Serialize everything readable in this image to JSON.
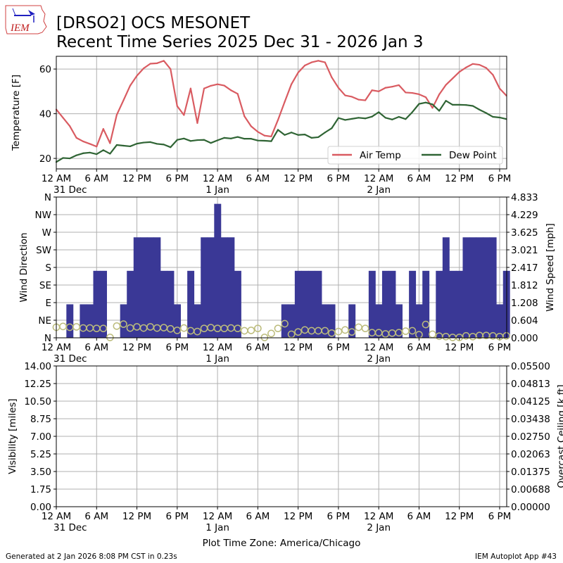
{
  "header": {
    "logo_text": "IEM",
    "title_line1": "[DRSO2] OCS MESONET",
    "title_line2": "Recent Time Series 2025 Dec 31 - 2026 Jan 3"
  },
  "footer": {
    "generated": "Generated at 2 Jan 2026 8:08 PM CST in 0.23s",
    "app": "IEM Autoplot App #43"
  },
  "x_axis": {
    "xlim": [
      "2025-12-31T00:00",
      "2026-01-02T19:03"
    ],
    "tick_step_hours": 6,
    "tick_labels": [
      "12 AM",
      "6 AM",
      "12 PM",
      "6 PM",
      "12 AM",
      "6 AM",
      "12 PM",
      "6 PM",
      "12 AM",
      "6 AM",
      "12 PM",
      "6 PM"
    ],
    "date_labels": [
      {
        "tick": 0,
        "label": "31 Dec"
      },
      {
        "tick": 4,
        "label": "1 Jan"
      },
      {
        "tick": 8,
        "label": "2 Jan"
      }
    ],
    "xlabel": "Plot Time Zone: America/Chicago"
  },
  "x": [
    "2025-12-31T00:00",
    "2025-12-31T01:00",
    "2025-12-31T02:00",
    "2025-12-31T03:00",
    "2025-12-31T04:00",
    "2025-12-31T05:00",
    "2025-12-31T06:00",
    "2025-12-31T07:00",
    "2025-12-31T08:00",
    "2025-12-31T09:00",
    "2025-12-31T10:00",
    "2025-12-31T11:00",
    "2025-12-31T12:00",
    "2025-12-31T13:00",
    "2025-12-31T14:00",
    "2025-12-31T15:00",
    "2025-12-31T16:00",
    "2025-12-31T17:00",
    "2025-12-31T18:00",
    "2025-12-31T19:00",
    "2025-12-31T20:00",
    "2025-12-31T21:00",
    "2025-12-31T22:00",
    "2025-12-31T23:00",
    "2026-01-01T00:00",
    "2026-01-01T01:00",
    "2026-01-01T02:00",
    "2026-01-01T03:00",
    "2026-01-01T04:00",
    "2026-01-01T05:00",
    "2026-01-01T06:00",
    "2026-01-01T07:00",
    "2026-01-01T08:00",
    "2026-01-01T09:00",
    "2026-01-01T10:00",
    "2026-01-01T11:00",
    "2026-01-01T12:00",
    "2026-01-01T13:00",
    "2026-01-01T14:00",
    "2026-01-01T15:00",
    "2026-01-01T16:00",
    "2026-01-01T17:00",
    "2026-01-01T18:00",
    "2026-01-01T19:00",
    "2026-01-01T20:00",
    "2026-01-01T21:00",
    "2026-01-01T22:00",
    "2026-01-01T23:00",
    "2026-01-02T00:00",
    "2026-01-02T01:00",
    "2026-01-02T02:00",
    "2026-01-02T03:00",
    "2026-01-02T04:00",
    "2026-01-02T05:00",
    "2026-01-02T06:00",
    "2026-01-02T07:00",
    "2026-01-02T08:00",
    "2026-01-02T09:00",
    "2026-01-02T10:00",
    "2026-01-02T11:00",
    "2026-01-02T12:00",
    "2026-01-02T13:00",
    "2026-01-02T14:00",
    "2026-01-02T15:00",
    "2026-01-02T16:00",
    "2026-01-02T17:00",
    "2026-01-02T18:00",
    "2026-01-02T19:00"
  ],
  "chart_data": [
    {
      "type": "line",
      "ylabel": "Temperature [F]",
      "ylim": [
        15.3,
        65.7
      ],
      "yticks": [
        20,
        40,
        60
      ],
      "grid": true,
      "legend": "lower-right",
      "series": [
        {
          "name": "Air Temp",
          "color": "#d95b61",
          "values": [
            41.9,
            38.2,
            34.5,
            29.2,
            27.6,
            26.5,
            25.3,
            33.2,
            26.8,
            39.5,
            46.0,
            52.6,
            57.0,
            60.3,
            62.4,
            62.6,
            63.7,
            60.0,
            43.4,
            39.4,
            51.3,
            35.8,
            51.3,
            52.5,
            53.2,
            52.6,
            50.5,
            48.9,
            38.9,
            34.4,
            31.9,
            30.2,
            29.8,
            37.2,
            45.3,
            53.2,
            58.4,
            61.6,
            63.0,
            63.7,
            63.0,
            56.3,
            51.6,
            48.2,
            47.6,
            46.3,
            46.0,
            50.5,
            50.0,
            51.6,
            52.1,
            52.8,
            49.5,
            49.3,
            48.7,
            47.4,
            42.6,
            48.6,
            52.9,
            55.8,
            58.7,
            60.7,
            62.3,
            61.9,
            60.5,
            57.4,
            51.3,
            48.1
          ]
        },
        {
          "name": "Dew Point",
          "color": "#2f6434",
          "values": [
            18.4,
            20.2,
            20.0,
            21.4,
            22.3,
            22.6,
            21.9,
            23.7,
            22.1,
            26.0,
            25.7,
            25.4,
            26.6,
            27.1,
            27.3,
            26.5,
            26.2,
            25.0,
            28.3,
            28.9,
            27.8,
            28.2,
            28.3,
            26.9,
            28.1,
            29.2,
            28.9,
            29.6,
            28.8,
            28.8,
            28.0,
            27.9,
            27.7,
            32.8,
            30.5,
            31.6,
            30.5,
            30.7,
            29.2,
            29.5,
            31.6,
            33.5,
            38.1,
            37.2,
            37.7,
            38.2,
            37.9,
            38.7,
            40.7,
            38.2,
            37.4,
            38.6,
            37.6,
            40.7,
            44.4,
            45.0,
            44.2,
            41.3,
            45.8,
            44.0,
            44.0,
            43.9,
            43.5,
            41.8,
            40.3,
            38.6,
            38.3,
            37.6
          ]
        }
      ]
    },
    {
      "type": "bar+scatter",
      "ylabel": "Wind Direction",
      "ylabel_right": "Wind Speed [mph]",
      "ylim": [
        0,
        360
      ],
      "ylim_right": [
        0,
        4.833
      ],
      "yticks": [
        0,
        45,
        90,
        135,
        180,
        225,
        270,
        315,
        360
      ],
      "ytick_labels": [
        "N",
        "NE",
        "E",
        "SE",
        "S",
        "SW",
        "W",
        "NW",
        "N"
      ],
      "yticks_right": [
        0,
        0.604,
        1.208,
        1.812,
        2.417,
        3.021,
        3.625,
        4.229,
        4.833
      ],
      "ytick_labels_right": [
        "0.000",
        "0.604",
        "1.208",
        "1.812",
        "2.417",
        "3.021",
        "3.625",
        "4.229",
        "4.833"
      ],
      "grid": true,
      "speed": {
        "color": "#3a3896",
        "axis": "right",
        "values": [
          null,
          null,
          1.15,
          null,
          1.15,
          1.15,
          2.3,
          2.3,
          null,
          null,
          1.15,
          2.3,
          3.45,
          3.45,
          3.45,
          3.45,
          2.3,
          2.3,
          1.15,
          null,
          2.3,
          1.15,
          3.45,
          3.45,
          4.6,
          3.45,
          3.45,
          2.3,
          null,
          null,
          null,
          null,
          null,
          null,
          1.15,
          1.15,
          2.3,
          2.3,
          2.3,
          2.3,
          1.15,
          1.15,
          null,
          null,
          1.15,
          null,
          null,
          2.3,
          1.15,
          2.3,
          2.3,
          1.15,
          null,
          2.3,
          1.15,
          2.3,
          null,
          2.3,
          3.45,
          2.3,
          2.3,
          3.45,
          3.45,
          3.45,
          3.45,
          3.45,
          1.15,
          2.3
        ]
      },
      "direction": {
        "color": "#bcbc7c",
        "axis": "left",
        "values": [
          27,
          29,
          27,
          28,
          25,
          25,
          24,
          24,
          1,
          30,
          35,
          25,
          28,
          25,
          28,
          25,
          26,
          23,
          19,
          25,
          18,
          16,
          24,
          26,
          24,
          24,
          25,
          24,
          18,
          19,
          24,
          1,
          11,
          24,
          36,
          9,
          15,
          20,
          18,
          18,
          18,
          12,
          16,
          20,
          15,
          27,
          24,
          13,
          13,
          10,
          12,
          13,
          17,
          18,
          8,
          34,
          9,
          4,
          3,
          1,
          1,
          5,
          3,
          6,
          6,
          5,
          3,
          5
        ]
      }
    },
    {
      "type": "line",
      "ylabel": "Visibility [miles]",
      "ylabel_right": "Overcast Ceiling [k ft]",
      "ylabel_right_color": "#008000",
      "ylim": [
        0,
        14
      ],
      "ylim_right": [
        0,
        0.055
      ],
      "yticks": [
        0,
        1.75,
        3.5,
        5.25,
        7,
        8.75,
        10.5,
        12.25,
        14
      ],
      "ytick_labels": [
        "0.00",
        "1.75",
        "3.50",
        "5.25",
        "7.00",
        "8.75",
        "10.50",
        "12.25",
        "14.00"
      ],
      "yticks_right": [
        0,
        0.006875,
        0.01375,
        0.020625,
        0.0275,
        0.034375,
        0.04125,
        0.048125,
        0.055
      ],
      "ytick_labels_right": [
        "0.00000",
        "0.00688",
        "0.01375",
        "0.02063",
        "0.02750",
        "0.03438",
        "0.04125",
        "0.04813",
        "0.05500"
      ],
      "grid": true,
      "series": []
    }
  ]
}
